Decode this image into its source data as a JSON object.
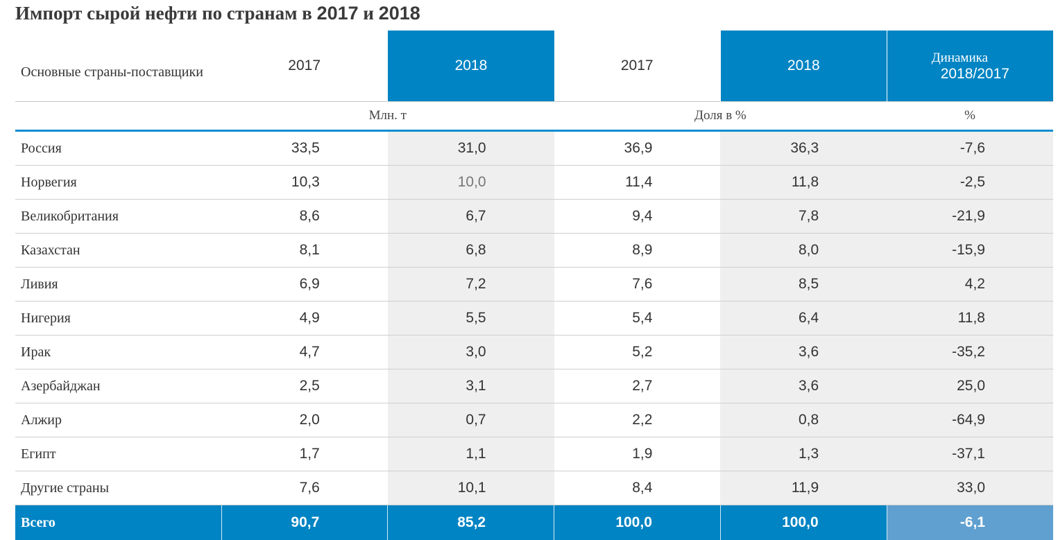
{
  "title": {
    "prefix": "Импорт сырой нефти по странам в ",
    "year1": "2017",
    "conj": " и ",
    "year2": "2018"
  },
  "table": {
    "header": {
      "first": "Основные страны-поставщики",
      "cols": [
        "2017",
        "2018",
        "2017",
        "2018"
      ],
      "dynamic_line1": "Динамика",
      "dynamic_line2": "2018/2017"
    },
    "units": {
      "mass": "Млн. т",
      "share": "Доля в %",
      "percent": "%"
    },
    "rows": [
      {
        "country": "Россия",
        "v2017": "33,5",
        "v2018": "31,0",
        "s2017": "36,9",
        "s2018": "36,3",
        "dyn": "-7,6"
      },
      {
        "country": "Норвегия",
        "v2017": "10,3",
        "v2018": "10,0",
        "s2017": "11,4",
        "s2018": "11,8",
        "dyn": "-2,5"
      },
      {
        "country": "Великобритания",
        "v2017": "8,6",
        "v2018": "6,7",
        "s2017": "9,4",
        "s2018": "7,8",
        "dyn": "-21,9"
      },
      {
        "country": "Казахстан",
        "v2017": "8,1",
        "v2018": "6,8",
        "s2017": "8,9",
        "s2018": "8,0",
        "dyn": "-15,9"
      },
      {
        "country": "Ливия",
        "v2017": "6,9",
        "v2018": "7,2",
        "s2017": "7,6",
        "s2018": "8,5",
        "dyn": "4,2"
      },
      {
        "country": "Нигерия",
        "v2017": "4,9",
        "v2018": "5,5",
        "s2017": "5,4",
        "s2018": "6,4",
        "dyn": "11,8"
      },
      {
        "country": "Ирак",
        "v2017": "4,7",
        "v2018": "3,0",
        "s2017": "5,2",
        "s2018": "3,6",
        "dyn": "-35,2"
      },
      {
        "country": "Азербайджан",
        "v2017": "2,5",
        "v2018": "3,1",
        "s2017": "2,7",
        "s2018": "3,6",
        "dyn": "25,0"
      },
      {
        "country": "Алжир",
        "v2017": "2,0",
        "v2018": "0,7",
        "s2017": "2,2",
        "s2018": "0,8",
        "dyn": "-64,9"
      },
      {
        "country": "Египт",
        "v2017": "1,7",
        "v2018": "1,1",
        "s2017": "1,9",
        "s2018": "1,3",
        "dyn": "-37,1"
      },
      {
        "country": "Другие страны",
        "v2017": "7,6",
        "v2018": "10,1",
        "s2017": "8,4",
        "s2018": "11,9",
        "dyn": "33,0"
      }
    ],
    "total": {
      "label": "Всего",
      "v2017": "90,7",
      "v2018": "85,2",
      "s2017": "100,0",
      "s2018": "100,0",
      "dyn": "-6,1"
    }
  },
  "colors": {
    "header_blue": "#0084c3",
    "total_light_blue": "#5fa0d0",
    "shade_gray": "#efefef"
  },
  "chart_data": {
    "type": "table",
    "title": "Импорт сырой нефти по странам в 2017 и 2018",
    "columns": [
      "Основные страны-поставщики",
      "2017 (Млн. т)",
      "2018 (Млн. т)",
      "2017 (Доля в %)",
      "2018 (Доля в %)",
      "Динамика 2018/2017 (%)"
    ],
    "rows": [
      [
        "Россия",
        33.5,
        31.0,
        36.9,
        36.3,
        -7.6
      ],
      [
        "Норвегия",
        10.3,
        10.0,
        11.4,
        11.8,
        -2.5
      ],
      [
        "Великобритания",
        8.6,
        6.7,
        9.4,
        7.8,
        -21.9
      ],
      [
        "Казахстан",
        8.1,
        6.8,
        8.9,
        8.0,
        -15.9
      ],
      [
        "Ливия",
        6.9,
        7.2,
        7.6,
        8.5,
        4.2
      ],
      [
        "Нигерия",
        4.9,
        5.5,
        5.4,
        6.4,
        11.8
      ],
      [
        "Ирак",
        4.7,
        3.0,
        5.2,
        3.6,
        -35.2
      ],
      [
        "Азербайджан",
        2.5,
        3.1,
        2.7,
        3.6,
        25.0
      ],
      [
        "Алжир",
        2.0,
        0.7,
        2.2,
        0.8,
        -64.9
      ],
      [
        "Египт",
        1.7,
        1.1,
        1.9,
        1.3,
        -37.1
      ],
      [
        "Другие страны",
        7.6,
        10.1,
        8.4,
        11.9,
        33.0
      ],
      [
        "Всего",
        90.7,
        85.2,
        100.0,
        100.0,
        -6.1
      ]
    ]
  }
}
